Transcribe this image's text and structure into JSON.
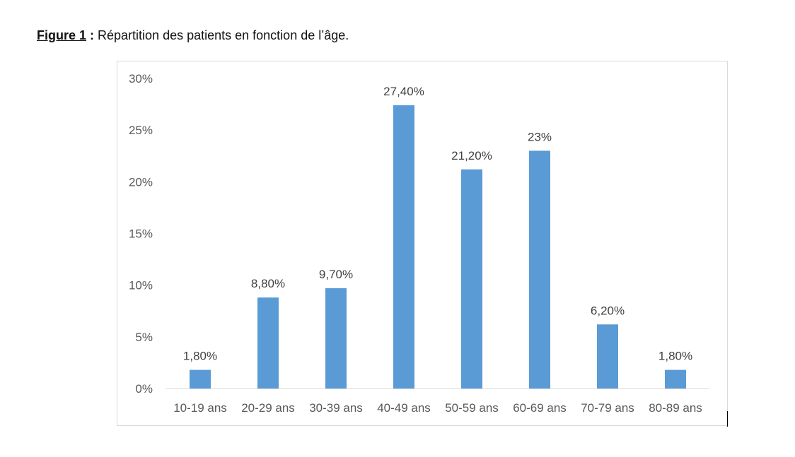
{
  "caption": {
    "figure_label": "Figure 1",
    "separator": " :",
    "text": " Répartition des patients en fonction de l’âge."
  },
  "chart_data": {
    "type": "bar",
    "categories": [
      "10-19 ans",
      "20-29 ans",
      "30-39 ans",
      "40-49 ans",
      "50-59 ans",
      "60-69 ans",
      "70-79 ans",
      "80-89 ans"
    ],
    "values": [
      1.8,
      8.8,
      9.7,
      27.4,
      21.2,
      23,
      6.2,
      1.8
    ],
    "data_labels": [
      "1,80%",
      "8,80%",
      "9,70%",
      "27,40%",
      "21,20%",
      "23%",
      "6,20%",
      "1,80%"
    ],
    "yticks": [
      0,
      5,
      10,
      15,
      20,
      25,
      30
    ],
    "ytick_labels": [
      "0%",
      "5%",
      "10%",
      "15%",
      "20%",
      "25%",
      "30%"
    ],
    "ylim": [
      0,
      30
    ],
    "title": "",
    "xlabel": "",
    "ylabel": "",
    "grid": false,
    "bar_color": "#5b9bd5"
  }
}
